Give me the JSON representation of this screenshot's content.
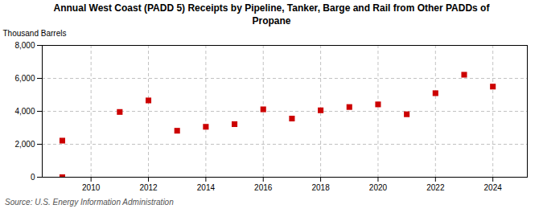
{
  "chart_data": {
    "type": "scatter",
    "title": "Annual West Coast (PADD 5) Receipts by Pipeline, Tanker, Barge and Rail from Other PADDs of\nPropane",
    "ylabel": "Thousand Barrels",
    "source": "Source: U.S. Energy Information Administration",
    "x": [
      2009,
      2009,
      2011,
      2012,
      2013,
      2014,
      2015,
      2016,
      2017,
      2018,
      2019,
      2020,
      2021,
      2022,
      2023,
      2024
    ],
    "values": [
      0,
      2220,
      3960,
      4660,
      2820,
      3060,
      3220,
      4120,
      3560,
      4060,
      4260,
      4420,
      3820,
      5100,
      6220,
      5500
    ],
    "color": "#cc0000",
    "marker": "square",
    "xlim": [
      2008.3,
      2025.2
    ],
    "xticks": [
      2010,
      2012,
      2014,
      2016,
      2018,
      2020,
      2022,
      2024
    ],
    "ylim": [
      0,
      8000
    ],
    "yticks": [
      0,
      {
        "value": 2000,
        "label": "2,000"
      },
      {
        "value": 4000,
        "label": "4,000"
      },
      {
        "value": 6000,
        "label": "6,000"
      },
      {
        "value": 8000,
        "label": "8,000"
      }
    ],
    "grid": true
  }
}
